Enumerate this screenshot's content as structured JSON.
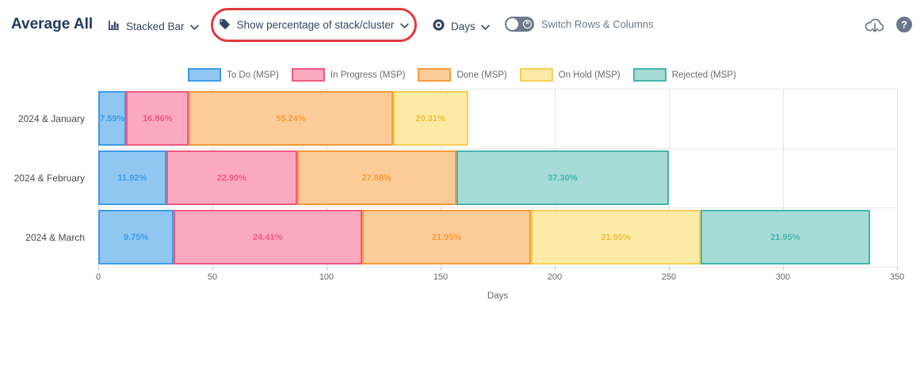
{
  "header": {
    "title": "Average All",
    "chart_type_dropdown": {
      "label": "Stacked Bar",
      "icon": "bar-chart-icon"
    },
    "percentage_dropdown": {
      "label": "Show percentage of stack/cluster",
      "icon": "tag-icon"
    },
    "unit_dropdown": {
      "label": "Days",
      "icon": "target-icon"
    },
    "switch_toggle": {
      "label": "Switch Rows & Columns",
      "state": "off"
    },
    "corner_icons": [
      "cloud-download-icon",
      "help-icon"
    ]
  },
  "annotation": {
    "type": "ellipse-highlight",
    "color": "#e0393e",
    "target": "percentage_dropdown"
  },
  "colors": {
    "toolbar_text": "#344563",
    "muted_text": "#6b778c",
    "grid": "#e4e4e4"
  },
  "chart_data": {
    "type": "bar",
    "orientation": "horizontal",
    "stacked": true,
    "value_mode": "percentage of stack shown as labels, bar lengths in days",
    "xlabel": "Days",
    "xlim": [
      0,
      350
    ],
    "xticks": [
      0,
      50,
      100,
      150,
      200,
      250,
      300,
      350
    ],
    "grid": true,
    "legend_position": "top",
    "categories": [
      "2024 & January",
      "2024 & February",
      "2024 & March"
    ],
    "series": [
      {
        "name": "To Do (MSP)",
        "fill": "#8fc7f1",
        "border": "#3e9be9",
        "label_color": "#3e9be9",
        "days": [
          12.3,
          29.8,
          33.0
        ],
        "percent_labels": [
          "7.59%",
          "11.92%",
          "9.75%"
        ]
      },
      {
        "name": "In Progress (MSP)",
        "fill": "#faa9c1",
        "border": "#f2597f",
        "label_color": "#f2597f",
        "days": [
          27.3,
          57.3,
          82.5
        ],
        "percent_labels": [
          "16.86%",
          "22.90%",
          "24.41%"
        ]
      },
      {
        "name": "Done (MSP)",
        "fill": "#fbcb98",
        "border": "#f89b38",
        "label_color": "#f89b38",
        "days": [
          89.5,
          69.7,
          74.2
        ],
        "percent_labels": [
          "55.24%",
          "27.88%",
          "21.95%"
        ]
      },
      {
        "name": "On Hold (MSP)",
        "fill": "#fceaa7",
        "border": "#f8ce55",
        "label_color": "#edbf39",
        "days": [
          32.9,
          0,
          74.2
        ],
        "percent_labels": [
          "20.31%",
          "",
          "21.95%"
        ]
      },
      {
        "name": "Rejected (MSP)",
        "fill": "#a6dbd7",
        "border": "#44b6ae",
        "label_color": "#44b6ae",
        "days": [
          0,
          93.3,
          74.2
        ],
        "percent_labels": [
          "",
          "37.30%",
          "21.95%"
        ]
      }
    ],
    "row_totals_days": [
      162,
      250,
      338
    ]
  }
}
